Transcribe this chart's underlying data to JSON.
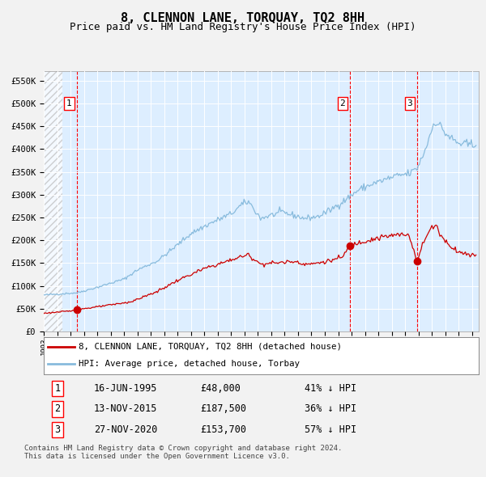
{
  "title": "8, CLENNON LANE, TORQUAY, TQ2 8HH",
  "subtitle": "Price paid vs. HM Land Registry's House Price Index (HPI)",
  "title_fontsize": 11,
  "subtitle_fontsize": 9,
  "hpi_color": "#88bbdd",
  "price_color": "#cc0000",
  "fig_bg_color": "#f2f2f2",
  "plot_bg_color": "#ddeeff",
  "grid_color": "#ffffff",
  "transactions": [
    {
      "date_num": 1995.456,
      "price": 48000,
      "label": "1"
    },
    {
      "date_num": 2015.872,
      "price": 187500,
      "label": "2"
    },
    {
      "date_num": 2020.911,
      "price": 153700,
      "label": "3"
    }
  ],
  "legend_entries": [
    "8, CLENNON LANE, TORQUAY, TQ2 8HH (detached house)",
    "HPI: Average price, detached house, Torbay"
  ],
  "table_data": [
    [
      "1",
      "16-JUN-1995",
      "£48,000",
      "41% ↓ HPI"
    ],
    [
      "2",
      "13-NOV-2015",
      "£187,500",
      "36% ↓ HPI"
    ],
    [
      "3",
      "27-NOV-2020",
      "£153,700",
      "57% ↓ HPI"
    ]
  ],
  "footnote": "Contains HM Land Registry data © Crown copyright and database right 2024.\nThis data is licensed under the Open Government Licence v3.0.",
  "ylim": [
    0,
    570000
  ],
  "yticks": [
    0,
    50000,
    100000,
    150000,
    200000,
    250000,
    300000,
    350000,
    400000,
    450000,
    500000,
    550000
  ],
  "ytick_labels": [
    "£0",
    "£50K",
    "£100K",
    "£150K",
    "£200K",
    "£250K",
    "£300K",
    "£350K",
    "£400K",
    "£450K",
    "£500K",
    "£550K"
  ],
  "xmin": 1993.0,
  "xmax": 2025.5,
  "hpi_anchors": [
    [
      1993.0,
      80000
    ],
    [
      1995.5,
      85000
    ],
    [
      1997.0,
      97000
    ],
    [
      1999.0,
      115000
    ],
    [
      2000.0,
      135000
    ],
    [
      2001.5,
      155000
    ],
    [
      2002.5,
      178000
    ],
    [
      2004.0,
      215000
    ],
    [
      2005.5,
      238000
    ],
    [
      2007.0,
      258000
    ],
    [
      2007.8,
      278000
    ],
    [
      2008.3,
      285000
    ],
    [
      2009.2,
      248000
    ],
    [
      2010.0,
      255000
    ],
    [
      2010.8,
      262000
    ],
    [
      2011.5,
      256000
    ],
    [
      2012.5,
      248000
    ],
    [
      2013.5,
      252000
    ],
    [
      2014.5,
      268000
    ],
    [
      2015.5,
      288000
    ],
    [
      2016.5,
      310000
    ],
    [
      2017.5,
      323000
    ],
    [
      2018.5,
      333000
    ],
    [
      2019.5,
      342000
    ],
    [
      2020.3,
      346000
    ],
    [
      2020.9,
      358000
    ],
    [
      2021.5,
      398000
    ],
    [
      2022.2,
      462000
    ],
    [
      2022.7,
      448000
    ],
    [
      2023.0,
      435000
    ],
    [
      2023.5,
      422000
    ],
    [
      2024.0,
      412000
    ],
    [
      2025.3,
      408000
    ]
  ],
  "price_anchors": [
    [
      1993.0,
      40000
    ],
    [
      1995.0,
      45000
    ],
    [
      1995.456,
      48000
    ],
    [
      1997.0,
      54000
    ],
    [
      1999.5,
      65000
    ],
    [
      2001.5,
      88000
    ],
    [
      2003.0,
      112000
    ],
    [
      2005.0,
      138000
    ],
    [
      2006.5,
      152000
    ],
    [
      2007.5,
      162000
    ],
    [
      2008.3,
      168000
    ],
    [
      2009.2,
      148000
    ],
    [
      2010.0,
      150000
    ],
    [
      2011.0,
      152000
    ],
    [
      2011.8,
      154000
    ],
    [
      2012.5,
      148000
    ],
    [
      2013.0,
      148000
    ],
    [
      2013.8,
      152000
    ],
    [
      2014.5,
      156000
    ],
    [
      2015.3,
      163000
    ],
    [
      2015.872,
      187500
    ],
    [
      2016.5,
      195000
    ],
    [
      2017.5,
      202000
    ],
    [
      2018.5,
      208000
    ],
    [
      2019.5,
      212000
    ],
    [
      2020.3,
      212000
    ],
    [
      2020.911,
      153700
    ],
    [
      2021.3,
      190000
    ],
    [
      2021.7,
      215000
    ],
    [
      2022.0,
      228000
    ],
    [
      2022.3,
      235000
    ],
    [
      2022.6,
      215000
    ],
    [
      2023.0,
      198000
    ],
    [
      2023.5,
      185000
    ],
    [
      2024.0,
      175000
    ],
    [
      2024.5,
      170000
    ],
    [
      2025.3,
      168000
    ]
  ]
}
